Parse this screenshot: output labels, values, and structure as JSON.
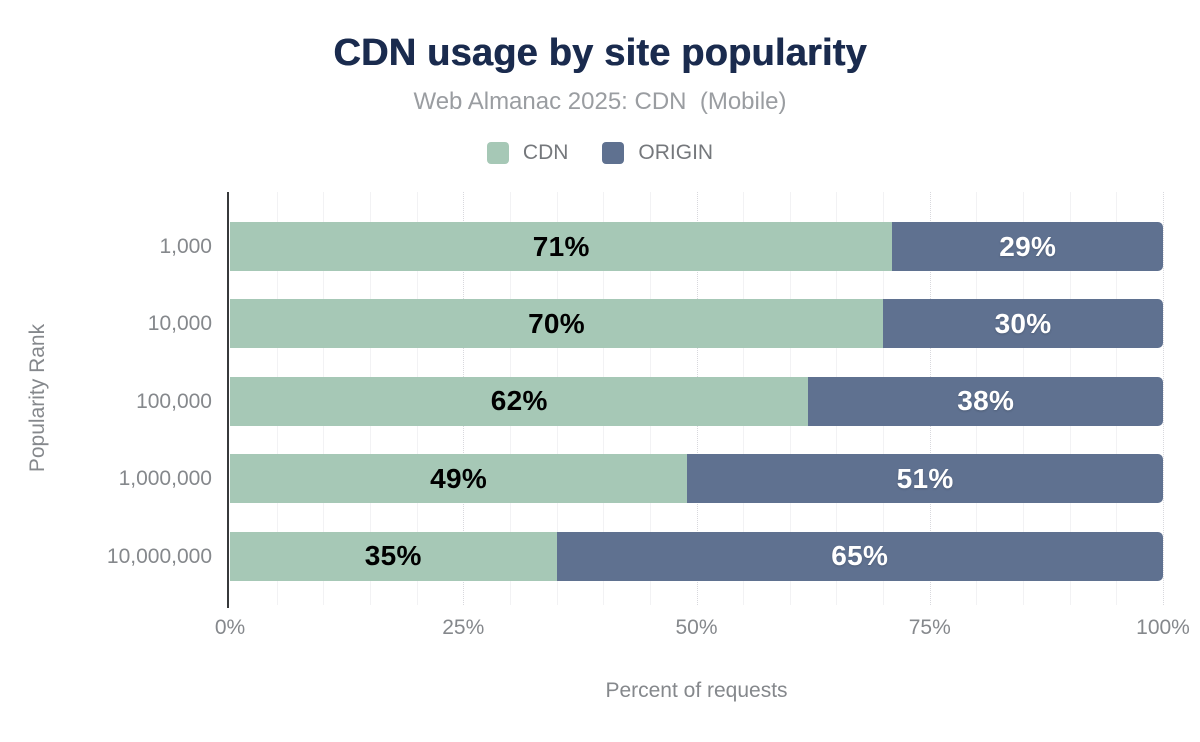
{
  "chart_data": {
    "type": "bar",
    "orientation": "horizontal",
    "stacked": true,
    "title": "CDN usage by site popularity",
    "subtitle": "Web Almanac 2025: CDN  (Mobile)",
    "xlabel": "Percent of requests",
    "ylabel": "Popularity Rank",
    "categories": [
      "1,000",
      "10,000",
      "100,000",
      "1,000,000",
      "10,000,000"
    ],
    "series": [
      {
        "name": "CDN",
        "color": "#a6c8b6",
        "label_color": "#000000",
        "values": [
          71,
          70,
          62,
          49,
          35
        ]
      },
      {
        "name": "ORIGIN",
        "color": "#5f7190",
        "label_color": "#ffffff",
        "values": [
          29,
          30,
          38,
          51,
          65
        ]
      }
    ],
    "value_suffix": "%",
    "xlim": [
      0,
      100
    ],
    "x_ticks": [
      {
        "value": 0,
        "label": "0%"
      },
      {
        "value": 25,
        "label": "25%"
      },
      {
        "value": 50,
        "label": "50%"
      },
      {
        "value": 75,
        "label": "75%"
      },
      {
        "value": 100,
        "label": "100%"
      }
    ],
    "minor_grid_step": 5,
    "major_grid_step": 25,
    "grid": true,
    "legend_position": "top"
  },
  "legend": [
    {
      "label": "CDN",
      "color": "#a6c8b6"
    },
    {
      "label": "ORIGIN",
      "color": "#5f7190"
    }
  ],
  "colors": {
    "title": "#1a2b4e",
    "subtitle": "#9a9da1",
    "axis_text": "#85888c",
    "cdn": "#a6c8b6",
    "origin": "#5f7190",
    "spine": "#37393b"
  }
}
